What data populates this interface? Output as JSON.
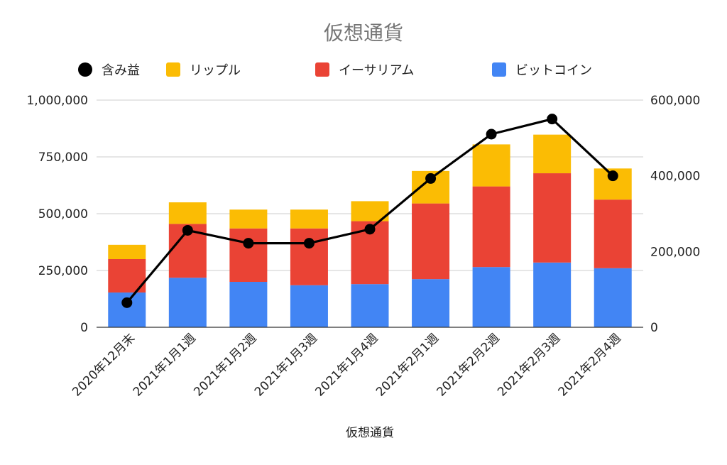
{
  "chart_data": {
    "type": "bar",
    "stacked": true,
    "title": "仮想通貨",
    "xlabel": "仮想通貨",
    "ylabel": "",
    "ylim": [
      0,
      1000000
    ],
    "y_ticks": [
      "1,000,000",
      "750,000",
      "500,000",
      "250,000",
      "0"
    ],
    "y2lim": [
      0,
      600000
    ],
    "y2_ticks": [
      "600,000",
      "400,000",
      "200,000",
      "0"
    ],
    "grid": true,
    "legend_position": "top",
    "categories": [
      "2020年12月末",
      "2021年1月1週",
      "2021年1月2週",
      "2021年1月3週",
      "2021年1月4週",
      "2021年2月1週",
      "2021年2月2週",
      "2021年2月3週",
      "2021年2月4週"
    ],
    "series": [
      {
        "name": "ビットコイン",
        "type": "bar",
        "axis": "left",
        "color": "#4285F4",
        "values": [
          153000,
          218000,
          200000,
          185000,
          190000,
          212000,
          265000,
          285000,
          260000
        ]
      },
      {
        "name": "イーサリアム",
        "type": "bar",
        "axis": "left",
        "color": "#EA4335",
        "values": [
          147000,
          237000,
          235000,
          250000,
          277000,
          333000,
          355000,
          393000,
          302000
        ]
      },
      {
        "name": "リップル",
        "type": "bar",
        "axis": "left",
        "color": "#FBBC04",
        "values": [
          63000,
          95000,
          83000,
          83000,
          88000,
          143000,
          185000,
          170000,
          137000
        ]
      },
      {
        "name": "含み益",
        "type": "line",
        "axis": "right",
        "color": "#000000",
        "values": [
          65000,
          256000,
          222000,
          222000,
          259000,
          393000,
          510000,
          550000,
          400000
        ]
      }
    ],
    "legend": [
      {
        "name": "含み益",
        "marker": "circle",
        "color": "#000000"
      },
      {
        "name": "リップル",
        "marker": "square",
        "color": "#FBBC04"
      },
      {
        "name": "イーサリアム",
        "marker": "square",
        "color": "#EA4335"
      },
      {
        "name": "ビットコイン",
        "marker": "square",
        "color": "#4285F4"
      }
    ]
  }
}
